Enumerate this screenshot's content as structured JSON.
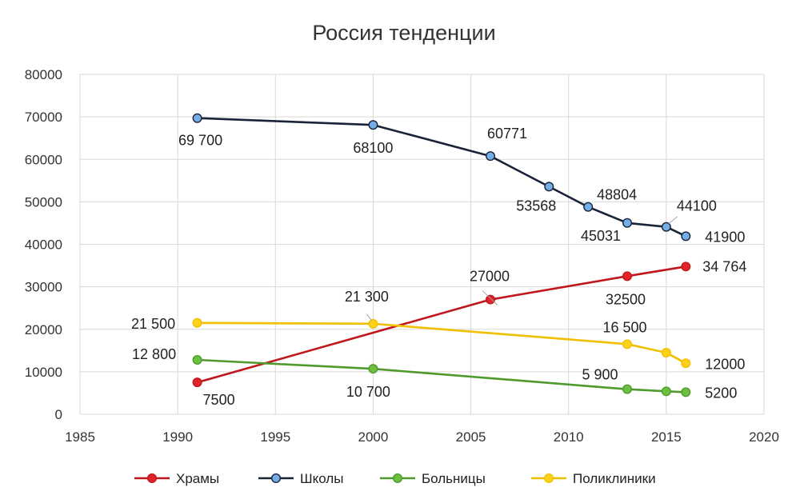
{
  "chart_data": {
    "type": "line",
    "title": "Россия тенденции",
    "xlabel": "",
    "ylabel": "",
    "xlim": [
      1985,
      2020
    ],
    "ylim": [
      0,
      80000
    ],
    "x_ticks": [
      "1985",
      "1990",
      "1995",
      "2000",
      "2005",
      "2010",
      "2015",
      "2020"
    ],
    "y_ticks": [
      "0",
      "10000",
      "20000",
      "30000",
      "40000",
      "50000",
      "60000",
      "70000",
      "80000"
    ],
    "grid": true,
    "legend_position": "bottom",
    "series": [
      {
        "name": "Храмы",
        "color": "#c0171c",
        "marker_color": "#e0242a",
        "points": [
          {
            "x": 1991,
            "y": 7500,
            "label": "7500"
          },
          {
            "x": 2006,
            "y": 27000,
            "label": "27000"
          },
          {
            "x": 2013,
            "y": 32500,
            "label": "32500"
          },
          {
            "x": 2016,
            "y": 34764,
            "label": "34 764"
          }
        ]
      },
      {
        "name": "Школы",
        "color": "#1a2338",
        "marker_color": "#74aee6",
        "points": [
          {
            "x": 1991,
            "y": 69700,
            "label": "69 700"
          },
          {
            "x": 2000,
            "y": 68100,
            "label": "68100"
          },
          {
            "x": 2006,
            "y": 60771,
            "label": "60771"
          },
          {
            "x": 2009,
            "y": 53568,
            "label": "53568"
          },
          {
            "x": 2011,
            "y": 48804,
            "label": "48804"
          },
          {
            "x": 2013,
            "y": 45031,
            "label": "45031"
          },
          {
            "x": 2015,
            "y": 44100,
            "label": "44100"
          },
          {
            "x": 2016,
            "y": 41900,
            "label": "41900"
          }
        ]
      },
      {
        "name": "Больницы",
        "color": "#4f9a2c",
        "marker_color": "#6cc040",
        "points": [
          {
            "x": 1991,
            "y": 12800,
            "label": "12 800"
          },
          {
            "x": 2000,
            "y": 10700,
            "label": "10 700"
          },
          {
            "x": 2013,
            "y": 5900,
            "label": "5 900"
          },
          {
            "x": 2015,
            "y": 5400,
            "label": ""
          },
          {
            "x": 2016,
            "y": 5200,
            "label": "5200"
          }
        ]
      },
      {
        "name": "Поликлиники",
        "color": "#f0c000",
        "marker_color": "#ffd21a",
        "points": [
          {
            "x": 1991,
            "y": 21500,
            "label": "21 500"
          },
          {
            "x": 2000,
            "y": 21300,
            "label": "21 300"
          },
          {
            "x": 2013,
            "y": 16500,
            "label": "16 500"
          },
          {
            "x": 2015,
            "y": 14500,
            "label": ""
          },
          {
            "x": 2016,
            "y": 12000,
            "label": "12000"
          }
        ]
      }
    ]
  }
}
